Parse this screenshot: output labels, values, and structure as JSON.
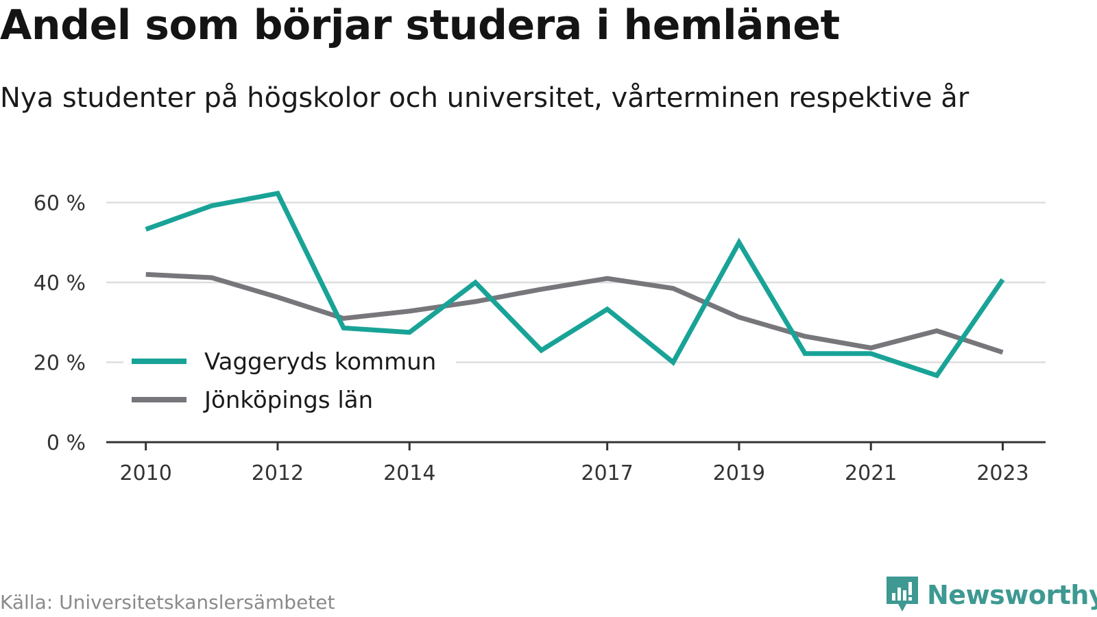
{
  "title": "Andel som börjar studera i hemlänet",
  "subtitle": "Nya studenter på högskolor och universitet, vårterminen respektive år",
  "source": "Källa: Universitetskanslersämbetet",
  "brand": {
    "name": "Newsworthy",
    "icon": "newsworthy-logo-icon",
    "color": "#3d9991"
  },
  "colors": {
    "vaggeryd": "#19a397",
    "jonkoping": "#77767b",
    "grid": "#dddddd",
    "axis": "#333333"
  },
  "chart_data": {
    "type": "line",
    "x": [
      2010,
      2011,
      2012,
      2013,
      2014,
      2015,
      2016,
      2017,
      2018,
      2019,
      2020,
      2021,
      2022,
      2023
    ],
    "x_tick_values": [
      2010,
      2012,
      2014,
      2017,
      2019,
      2021,
      2023
    ],
    "x_tick_labels": [
      "2010",
      "2012",
      "2014",
      "2017",
      "2019",
      "2021",
      "2023"
    ],
    "y_ticks": [
      0,
      20,
      40,
      60
    ],
    "y_tick_labels": [
      "0 %",
      "20 %",
      "40 %",
      "60 %"
    ],
    "ylim": [
      0,
      63
    ],
    "xlim": [
      2009.4,
      2023.65
    ],
    "grid": true,
    "legend_position": "lower-left",
    "series": [
      {
        "name": "Vaggeryds kommun",
        "color": "#19a397",
        "values": [
          53.3,
          59.2,
          62.3,
          28.6,
          27.5,
          40.0,
          23.0,
          33.3,
          20.0,
          50.0,
          22.2,
          22.2,
          16.7,
          40.7
        ]
      },
      {
        "name": "Jönköpings län",
        "color": "#77767b",
        "values": [
          42.0,
          41.2,
          36.3,
          31.0,
          32.8,
          35.2,
          38.3,
          41.0,
          38.5,
          31.3,
          26.5,
          23.6,
          27.9,
          22.5
        ]
      }
    ]
  }
}
